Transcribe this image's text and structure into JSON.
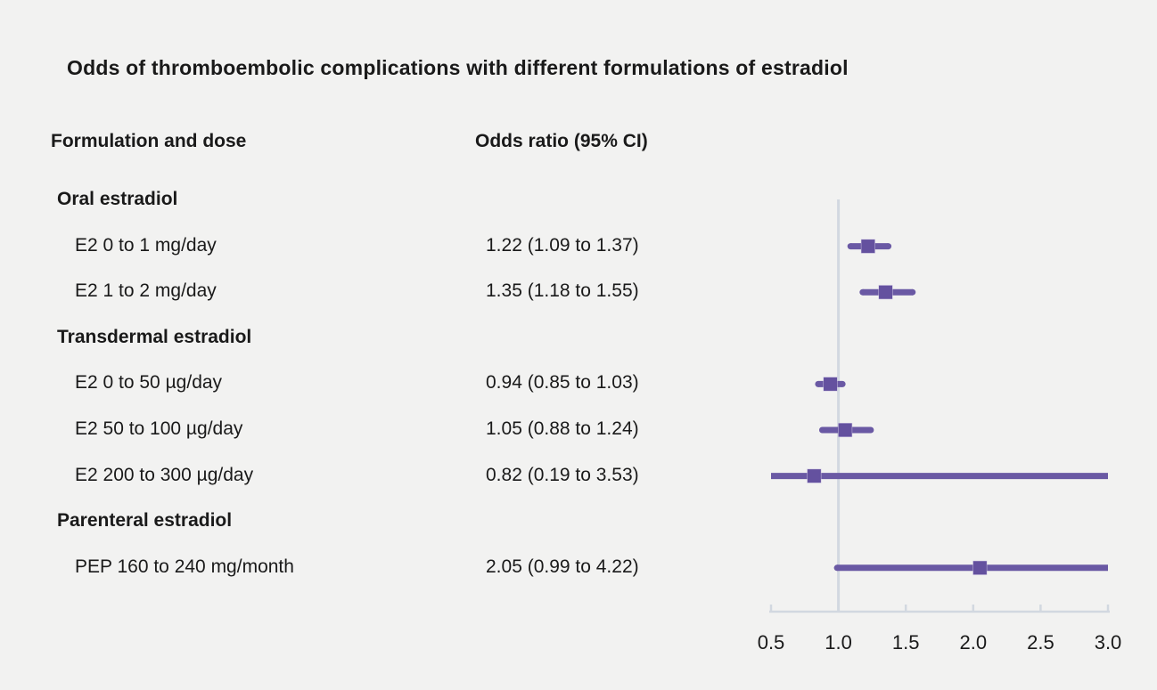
{
  "title": "Odds of thromboembolic complications with different formulations of estradiol",
  "column_headers": {
    "formulation": "Formulation and dose",
    "odds_ratio": "Odds ratio (95% CI)"
  },
  "colors": {
    "background": "#f2f2f1",
    "text": "#1a1a1a",
    "ci_line": "#6a59a4",
    "marker": "#64519f",
    "marker_halo": "#c9c0e0",
    "axis_line": "#d2d8e0"
  },
  "chart_data": {
    "type": "scatter",
    "subtype": "forest-plot",
    "title": "Odds of thromboembolic complications with different formulations of estradiol",
    "xlabel": "Odds ratio",
    "ylabel": "Formulation and dose",
    "axis": {
      "min": 0.5,
      "max": 3.0,
      "tick_labels": [
        "0.5",
        "1.0",
        "1.5",
        "2.0",
        "2.5",
        "3.0"
      ],
      "tick_values": [
        0.5,
        1.0,
        1.5,
        2.0,
        2.5,
        3.0
      ],
      "reference_line": 1.0,
      "grid": false
    },
    "rows": [
      {
        "type": "group",
        "label": "Oral estradiol"
      },
      {
        "type": "item",
        "label": "E2 0 to 1 mg/day",
        "value_text": "1.22 (1.09 to 1.37)",
        "or": 1.22,
        "ci_low": 1.09,
        "ci_high": 1.37
      },
      {
        "type": "item",
        "label": "E2 1 to 2 mg/day",
        "value_text": "1.35 (1.18 to 1.55)",
        "or": 1.35,
        "ci_low": 1.18,
        "ci_high": 1.55
      },
      {
        "type": "group",
        "label": "Transdermal estradiol"
      },
      {
        "type": "item",
        "label": "E2 0 to 50 µg/day",
        "value_text": "0.94 (0.85 to 1.03)",
        "or": 0.94,
        "ci_low": 0.85,
        "ci_high": 1.03
      },
      {
        "type": "item",
        "label": "E2 50 to 100 µg/day",
        "value_text": "1.05 (0.88 to 1.24)",
        "or": 1.05,
        "ci_low": 0.88,
        "ci_high": 1.24
      },
      {
        "type": "item",
        "label": "E2 200 to 300 µg/day",
        "value_text": "0.82 (0.19 to 3.53)",
        "or": 0.82,
        "ci_low": 0.19,
        "ci_high": 3.53
      },
      {
        "type": "group",
        "label": "Parenteral estradiol"
      },
      {
        "type": "item",
        "label": "PEP 160 to 240 mg/month",
        "value_text": "2.05 (0.99 to 4.22)",
        "or": 2.05,
        "ci_low": 0.99,
        "ci_high": 4.22
      }
    ]
  }
}
